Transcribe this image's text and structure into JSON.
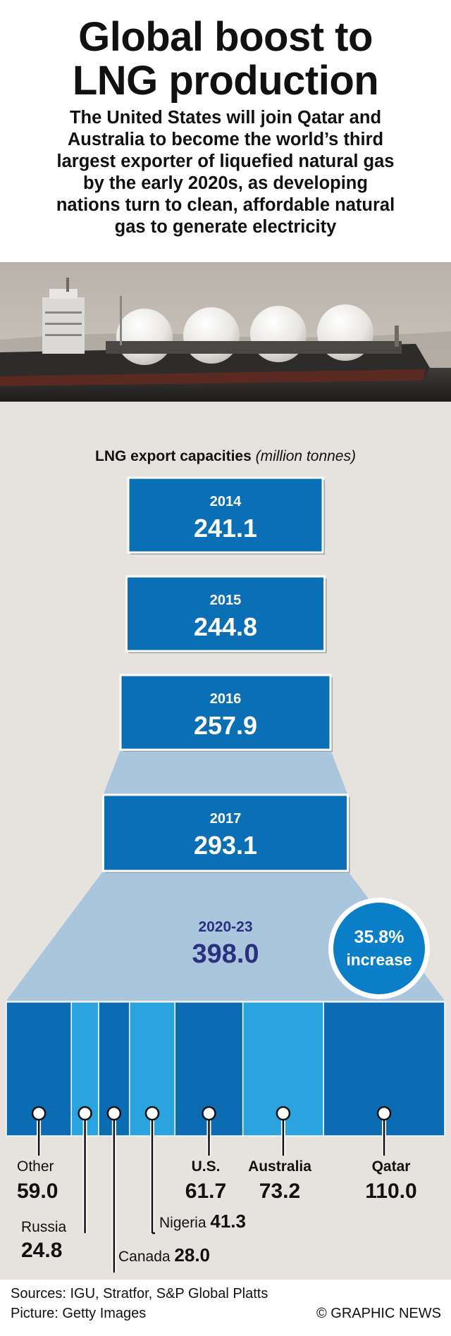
{
  "header": {
    "title_line1": "Global boost to",
    "title_line2": "LNG production",
    "subtitle_lines": [
      "The United States will join Qatar and",
      "Australia to become the world’s third",
      "largest exporter of liquefied natural gas",
      "by the early 2020s, as developing",
      "nations turn to clean, affordable natural",
      "gas to generate electricity"
    ]
  },
  "chart_data": {
    "type": "bar",
    "title": "LNG export capacities",
    "unit": "(million tonnes)",
    "annual": [
      {
        "year": "2014",
        "value": "241.1"
      },
      {
        "year": "2015",
        "value": "244.8"
      },
      {
        "year": "2016",
        "value": "257.9"
      },
      {
        "year": "2017",
        "value": "293.1"
      }
    ],
    "forecast": {
      "period": "2020-23",
      "value": "398.0"
    },
    "increase_badge": {
      "value": "35.8%",
      "label": "increase"
    },
    "breakdown": [
      {
        "name": "Other",
        "value": 59.0,
        "label": "59.0"
      },
      {
        "name": "Russia",
        "value": 24.8,
        "label": "24.8"
      },
      {
        "name": "Canada",
        "value": 28.0,
        "label": "28.0"
      },
      {
        "name": "Nigeria",
        "value": 41.3,
        "label": "41.3"
      },
      {
        "name": "U.S.",
        "value": 61.7,
        "label": "61.7"
      },
      {
        "name": "Australia",
        "value": 73.2,
        "label": "73.2"
      },
      {
        "name": "Qatar",
        "value": 110.0,
        "label": "110.0"
      }
    ],
    "colors": {
      "box": "#0a6fb5",
      "dark_segment": "#0b6cb4",
      "light_segment": "#2aa3de",
      "funnel": "#a9c6dc",
      "forecast_text": "#2b2f7f",
      "background": "#e6e3de"
    }
  },
  "footer": {
    "sources": "Sources: IGU, Stratfor, S&P Global Platts",
    "picture": "Picture: Getty Images",
    "credit": "© GRAPHIC NEWS"
  }
}
